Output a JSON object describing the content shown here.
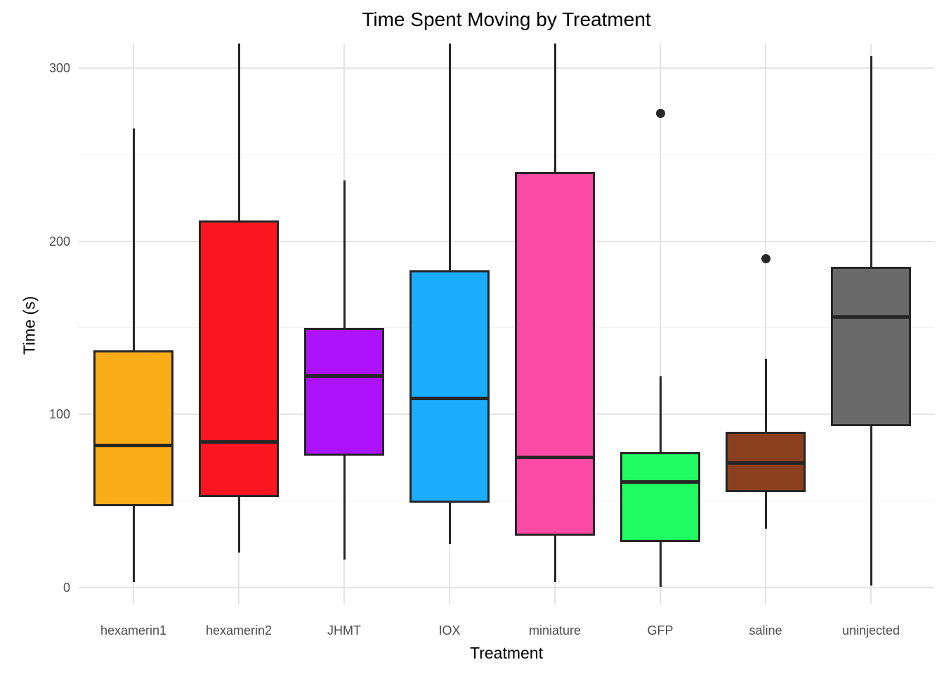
{
  "chart_data": {
    "type": "boxplot",
    "title": "Time Spent Moving by Treatment",
    "xlabel": "Treatment",
    "ylabel": "Time (s)",
    "ylim": [
      -10,
      315
    ],
    "yticks": [
      0,
      100,
      200,
      300
    ],
    "ytick_labels": [
      "0",
      "100",
      "200",
      "300"
    ],
    "yticks_minor": [
      50,
      150,
      250
    ],
    "grid": "major and minor horizontal, vertical at each category",
    "legend": "none",
    "categories": [
      "hexamerin1",
      "hexamerin2",
      "JHMT",
      "IOX",
      "miniature",
      "GFP",
      "saline",
      "uninjected"
    ],
    "series": [
      {
        "category": "hexamerin1",
        "color": "#FBAD18",
        "whisker_low": 3,
        "q1": 47,
        "median": 82,
        "q3": 137,
        "whisker_high": 265,
        "outliers": []
      },
      {
        "category": "hexamerin2",
        "color": "#FA161F",
        "whisker_low": 20,
        "q1": 52,
        "median": 84,
        "q3": 212,
        "whisker_high": 315,
        "outliers": []
      },
      {
        "category": "JHMT",
        "color": "#AC12FB",
        "whisker_low": 16,
        "q1": 76,
        "median": 122,
        "q3": 150,
        "whisker_high": 235,
        "outliers": []
      },
      {
        "category": "IOX",
        "color": "#1BADFC",
        "whisker_low": 25,
        "q1": 49,
        "median": 109,
        "q3": 183,
        "whisker_high": 315,
        "outliers": []
      },
      {
        "category": "miniature",
        "color": "#FB4AA6",
        "whisker_low": 3,
        "q1": 30,
        "median": 75,
        "q3": 240,
        "whisker_high": 315,
        "outliers": []
      },
      {
        "category": "GFP",
        "color": "#21FB62",
        "whisker_low": 0,
        "q1": 26,
        "median": 61,
        "q3": 78,
        "whisker_high": 122,
        "outliers": [
          274
        ]
      },
      {
        "category": "saline",
        "color": "#8C3F1F",
        "whisker_low": 34,
        "q1": 55,
        "median": 72,
        "q3": 90,
        "whisker_high": 132,
        "outliers": [
          190
        ]
      },
      {
        "category": "uninjected",
        "color": "#6A6A6A",
        "whisker_low": 1,
        "q1": 93,
        "median": 156,
        "q3": 185,
        "whisker_high": 307,
        "outliers": []
      }
    ],
    "style": {
      "box_border_color": "#262626",
      "grid_major_color": "#e4e4e4",
      "grid_minor_color": "#f1f1f1",
      "tick_label_color": "#4d4d4d",
      "background": "#ffffff"
    }
  }
}
